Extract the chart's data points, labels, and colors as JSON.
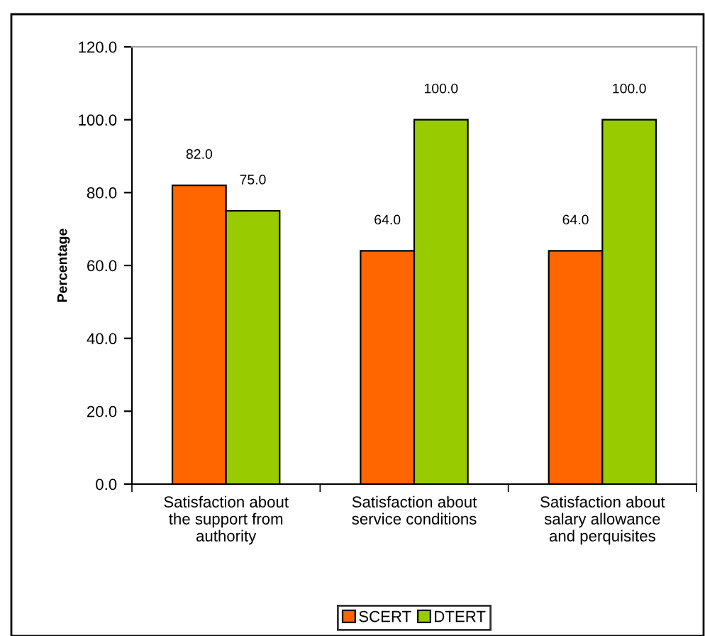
{
  "chart_data": {
    "type": "bar",
    "ylabel": "Percentage",
    "categories": [
      "Satisfaction about\nthe support from\nauthority",
      "Satisfaction about\nservice conditions",
      "Satisfaction about\nsalary allowance\nand perquisites"
    ],
    "series": [
      {
        "name": "SCERT",
        "color": "#ff6600",
        "values": [
          82,
          64,
          64
        ],
        "value_labels": [
          "82.0",
          "64.0",
          "64.0"
        ]
      },
      {
        "name": "DTERT",
        "color": "#99cc00",
        "values": [
          75,
          100,
          100
        ],
        "value_labels": [
          "75.0",
          "100.0",
          "100.0"
        ]
      }
    ],
    "ylim": [
      0,
      120
    ],
    "yticks": [
      {
        "value": 0,
        "label": "0.0"
      },
      {
        "value": 20,
        "label": "20.0"
      },
      {
        "value": 40,
        "label": "40.0"
      },
      {
        "value": 60,
        "label": "60.0"
      },
      {
        "value": 80,
        "label": "80.0"
      },
      {
        "value": 100,
        "label": "100.0"
      },
      {
        "value": 120,
        "label": "120.0"
      }
    ],
    "grid": false,
    "legend": "bottom"
  }
}
